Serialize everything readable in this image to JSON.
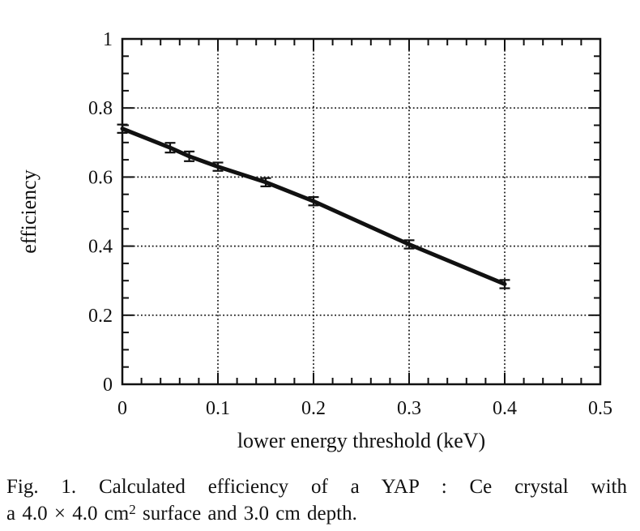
{
  "colors": {
    "ink": "#111111",
    "background": "#ffffff"
  },
  "chart_data": {
    "type": "line",
    "title": "",
    "xlabel": "lower energy threshold (keV)",
    "ylabel": "efficiency",
    "xlim": [
      0,
      0.5
    ],
    "ylim": [
      0,
      1
    ],
    "grid": {
      "style": "dotted",
      "x_values": [
        0.1,
        0.2,
        0.3,
        0.4
      ],
      "y_values": [
        0.2,
        0.4,
        0.6,
        0.8
      ]
    },
    "x_major_ticks": [
      0,
      0.1,
      0.2,
      0.3,
      0.4,
      0.5
    ],
    "x_tick_labels": [
      "0",
      "0.1",
      "0.2",
      "0.3",
      "0.4",
      "0.5"
    ],
    "x_minor_step": 0.02,
    "y_major_ticks": [
      0,
      0.2,
      0.4,
      0.6,
      0.8,
      1
    ],
    "y_tick_labels": [
      "0",
      "0.2",
      "0.4",
      "0.6",
      "0.8",
      "1"
    ],
    "y_minor_step": 0.05,
    "legend": "none",
    "series": [
      {
        "name": "calculated efficiency",
        "x": [
          0,
          0.05,
          0.07,
          0.1,
          0.15,
          0.2,
          0.3,
          0.4
        ],
        "y": [
          0.74,
          0.685,
          0.66,
          0.63,
          0.585,
          0.53,
          0.405,
          0.29
        ],
        "yerr": [
          0.012,
          0.014,
          0.014,
          0.012,
          0.012,
          0.012,
          0.012,
          0.012
        ]
      }
    ]
  },
  "caption": {
    "line1": "Fig. 1. Calculated efficiency of a YAP : Ce crystal with",
    "line2_pre": "a 4.0 × 4.0 cm",
    "line2_sup": "2",
    "line2_post": " surface and 3.0 cm depth."
  }
}
